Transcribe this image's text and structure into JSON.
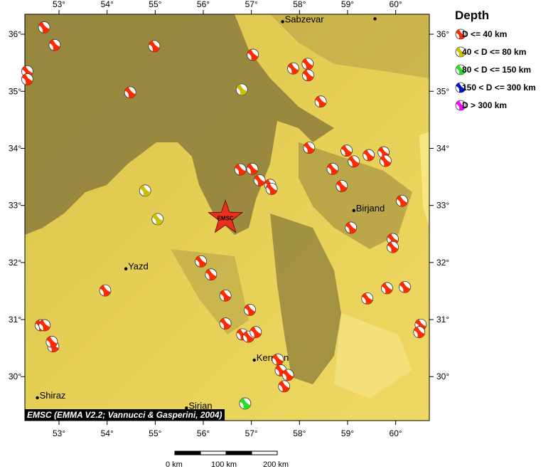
{
  "map": {
    "lon_range": [
      52.29,
      60.7
    ],
    "lat_range": [
      29.23,
      36.35
    ],
    "lon_ticks": [
      "53°",
      "54°",
      "55°",
      "56°",
      "57°",
      "58°",
      "59°",
      "60°"
    ],
    "lat_ticks": [
      "36°",
      "35°",
      "34°",
      "33°",
      "32°",
      "31°",
      "30°"
    ],
    "colors": {
      "terrain_light": "#e8d24a",
      "terrain_dark": "#8a7a3a",
      "desert": "#f3e07a"
    }
  },
  "legend": {
    "title": "Depth",
    "items": [
      {
        "label": "D <= 40 km",
        "color": "#ff2a00"
      },
      {
        "label": "40 < D <= 80 km",
        "color": "#c8c000"
      },
      {
        "label": "80 < D <= 150 km",
        "color": "#22e022"
      },
      {
        "label": "150 < D <= 300 km",
        "color": "#0010d0"
      },
      {
        "label": "D > 300 km",
        "color": "#ff00ff"
      }
    ]
  },
  "cities": [
    {
      "name": "Sabzevar",
      "lon": 57.65,
      "lat": 36.22
    },
    {
      "name": "Yazd",
      "lon": 54.39,
      "lat": 31.89
    },
    {
      "name": "Birjand",
      "lon": 59.13,
      "lat": 32.91
    },
    {
      "name": "Kerman",
      "lon": 57.06,
      "lat": 30.29
    },
    {
      "name": "Shiraz",
      "lon": 52.55,
      "lat": 29.63
    },
    {
      "name": "Sirjan",
      "lon": 55.65,
      "lat": 29.45
    },
    {
      "name": "",
      "lon": 59.57,
      "lat": 36.27
    }
  ],
  "epicenter": {
    "label": "EMSC",
    "lon": 56.46,
    "lat": 32.78
  },
  "events": [
    [
      52.69,
      36.12,
      1
    ],
    [
      52.91,
      35.81,
      1
    ],
    [
      54.98,
      35.79,
      1
    ],
    [
      57.03,
      35.64,
      1
    ],
    [
      57.87,
      35.4,
      1
    ],
    [
      58.17,
      35.48,
      1
    ],
    [
      58.18,
      35.28,
      1
    ],
    [
      52.34,
      35.35,
      1
    ],
    [
      52.34,
      35.21,
      1
    ],
    [
      54.48,
      34.98,
      1
    ],
    [
      56.8,
      35.03,
      2
    ],
    [
      58.44,
      34.82,
      1
    ],
    [
      58.2,
      34.01,
      1
    ],
    [
      58.98,
      33.96,
      1
    ],
    [
      59.13,
      33.77,
      1
    ],
    [
      59.44,
      33.88,
      1
    ],
    [
      59.75,
      33.93,
      1
    ],
    [
      59.79,
      33.78,
      1
    ],
    [
      58.69,
      33.64,
      1
    ],
    [
      56.77,
      33.63,
      1
    ],
    [
      57.02,
      33.64,
      1
    ],
    [
      57.17,
      33.44,
      1
    ],
    [
      57.39,
      33.36,
      1
    ],
    [
      57.42,
      33.29,
      1
    ],
    [
      58.88,
      33.34,
      1
    ],
    [
      60.13,
      33.08,
      1
    ],
    [
      54.79,
      33.26,
      2
    ],
    [
      55.05,
      32.76,
      2
    ],
    [
      59.07,
      32.61,
      1
    ],
    [
      59.94,
      32.41,
      1
    ],
    [
      59.94,
      32.27,
      1
    ],
    [
      55.95,
      32.02,
      1
    ],
    [
      56.16,
      31.79,
      1
    ],
    [
      53.96,
      31.51,
      1
    ],
    [
      56.46,
      31.42,
      1
    ],
    [
      59.41,
      31.37,
      1
    ],
    [
      59.82,
      31.55,
      1
    ],
    [
      60.19,
      31.57,
      1
    ],
    [
      56.97,
      31.17,
      1
    ],
    [
      56.46,
      30.93,
      1
    ],
    [
      52.62,
      30.9,
      1
    ],
    [
      52.7,
      30.9,
      1
    ],
    [
      52.88,
      30.53,
      1
    ],
    [
      52.85,
      30.61,
      1
    ],
    [
      56.81,
      30.74,
      1
    ],
    [
      56.94,
      30.7,
      1
    ],
    [
      57.09,
      30.78,
      1
    ],
    [
      60.52,
      30.91,
      1
    ],
    [
      60.49,
      30.78,
      1
    ],
    [
      57.55,
      30.3,
      1
    ],
    [
      57.61,
      30.11,
      1
    ],
    [
      57.76,
      30.03,
      1
    ],
    [
      57.68,
      29.83,
      1
    ],
    [
      56.87,
      29.53,
      3
    ]
  ],
  "credit": "EMSC (EMMA V2.2; Vannucci & Gasperini, 2004)",
  "scale": {
    "labels": [
      "0 km",
      "100 km",
      "200 km"
    ]
  }
}
